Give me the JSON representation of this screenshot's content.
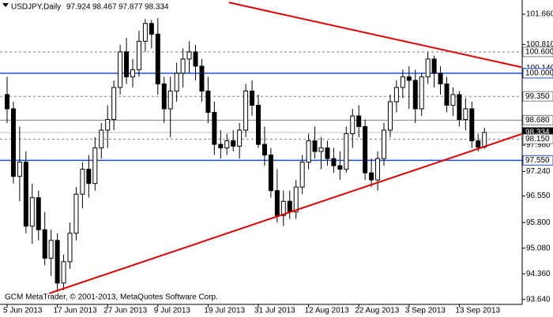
{
  "chart_data": {
    "type": "candlestick",
    "symbol": "USDJPY,Daily",
    "ohlc_header": [
      97.924,
      98.467,
      97.877,
      98.334
    ],
    "copyright": "GCM MetaTrader, © 2001-2013, MetaQuotes Software Corp.",
    "categories": [
      "5 Jun 2013",
      null,
      null,
      null,
      null,
      null,
      null,
      null,
      "17 Jun 2013",
      null,
      null,
      null,
      null,
      null,
      null,
      null,
      "27 Jun 2013",
      null,
      null,
      null,
      null,
      null,
      null,
      null,
      "9 Jul 2013",
      null,
      null,
      null,
      null,
      null,
      null,
      null,
      "19 Jul 2013",
      null,
      null,
      null,
      null,
      null,
      null,
      null,
      "31 Jul 2013",
      null,
      null,
      null,
      null,
      null,
      null,
      null,
      "12 Aug 2013",
      null,
      null,
      null,
      null,
      null,
      null,
      null,
      "22 Aug 2013",
      null,
      null,
      null,
      null,
      null,
      null,
      null,
      "3 Sep 2013",
      null,
      null,
      null,
      null,
      null,
      null,
      null,
      "13 Sep 2013",
      null,
      null,
      null,
      null
    ],
    "open": [
      99.4,
      99.0,
      97.1,
      97.5,
      95.7,
      96.5,
      95.6,
      94.8,
      95.3,
      94.1,
      94.7,
      95.5,
      96.6,
      97.3,
      96.9,
      97.9,
      98.4,
      98.7,
      99.6,
      100.6,
      99.9,
      100.1,
      100.9,
      101.4,
      101.1,
      99.7,
      99.0,
      99.5,
      100.0,
      100.4,
      100.6,
      100.2,
      99.5,
      98.9,
      98.0,
      97.9,
      98.1,
      97.95,
      98.4,
      99.5,
      99.1,
      98.0,
      97.7,
      96.7,
      96.0,
      96.4,
      96.1,
      96.8,
      97.5,
      98.1,
      97.8,
      97.9,
      97.6,
      97.4,
      97.3,
      98.3,
      98.8,
      98.5,
      97.2,
      97.0,
      97.6,
      98.4,
      99.2,
      99.6,
      99.9,
      99.8,
      99.0,
      99.9,
      100.4,
      100.0,
      99.7,
      99.1,
      99.4,
      98.7,
      99.0,
      98.1,
      97.924
    ],
    "high": [
      99.9,
      99.2,
      98.5,
      97.8,
      96.9,
      96.7,
      96.1,
      95.6,
      95.5,
      94.9,
      95.8,
      96.8,
      97.5,
      97.7,
      98.2,
      98.6,
      99.1,
      99.8,
      100.8,
      101.0,
      100.4,
      101.2,
      101.53,
      101.5,
      101.55,
      99.9,
      99.9,
      100.3,
      100.7,
      100.9,
      100.8,
      100.4,
      99.9,
      99.2,
      98.4,
      98.3,
      98.4,
      98.6,
      99.7,
      99.8,
      99.4,
      98.5,
      97.9,
      97.3,
      96.7,
      96.7,
      97.0,
      97.7,
      98.3,
      98.5,
      98.2,
      98.1,
      97.9,
      97.8,
      98.5,
      99.0,
      99.1,
      98.7,
      97.6,
      97.8,
      98.6,
      99.4,
      99.8,
      100.1,
      100.2,
      100.1,
      100.0,
      100.6,
      100.5,
      100.2,
      99.9,
      99.6,
      99.5,
      99.3,
      99.2,
      98.3,
      98.467
    ],
    "low": [
      98.6,
      96.9,
      96.4,
      95.5,
      95.2,
      95.3,
      94.6,
      94.3,
      93.85,
      93.9,
      94.5,
      95.3,
      96.2,
      96.5,
      96.7,
      97.6,
      97.9,
      98.4,
      99.4,
      99.7,
      99.6,
      99.9,
      100.6,
      100.7,
      99.4,
      98.6,
      98.2,
      99.2,
      99.6,
      100.0,
      99.8,
      99.2,
      98.6,
      97.7,
      97.6,
      97.7,
      97.8,
      97.6,
      98.2,
      98.8,
      97.9,
      97.4,
      96.5,
      95.8,
      95.7,
      95.9,
      95.9,
      96.6,
      97.3,
      97.6,
      97.3,
      97.4,
      97.2,
      97.0,
      97.2,
      97.9,
      98.2,
      97.0,
      96.8,
      96.7,
      97.4,
      98.2,
      98.9,
      99.3,
      99.0,
      98.6,
      98.8,
      99.7,
      99.6,
      99.4,
      98.9,
      98.8,
      98.5,
      98.4,
      97.9,
      97.8,
      97.877
    ],
    "close": [
      99.0,
      97.1,
      97.5,
      95.7,
      96.5,
      95.6,
      94.8,
      95.3,
      94.1,
      94.7,
      95.5,
      96.6,
      97.3,
      96.9,
      97.9,
      98.4,
      98.7,
      99.6,
      100.6,
      99.9,
      100.1,
      100.9,
      101.4,
      101.1,
      99.7,
      99.0,
      99.5,
      100.0,
      100.4,
      100.6,
      100.2,
      99.5,
      98.9,
      98.0,
      97.9,
      98.1,
      97.95,
      98.4,
      99.5,
      99.1,
      98.0,
      97.7,
      96.7,
      96.0,
      96.4,
      96.1,
      96.8,
      97.5,
      98.1,
      97.8,
      97.9,
      97.6,
      97.4,
      97.3,
      98.3,
      98.8,
      98.5,
      97.2,
      97.0,
      97.6,
      98.4,
      99.2,
      99.6,
      99.9,
      99.8,
      99.0,
      99.9,
      100.4,
      100.0,
      99.7,
      99.1,
      99.4,
      98.7,
      99.0,
      98.1,
      97.92,
      98.334
    ],
    "bull_color": "#ffffff",
    "bear_color": "#000000",
    "ylim": [
      93.5,
      102.06
    ],
    "yticks": [
      {
        "value": 101.66,
        "label": "101.660"
      },
      {
        "value": 100.81,
        "label": "100.810"
      },
      {
        "value": 100.14,
        "label": "100.140"
      },
      {
        "value": 97.98,
        "label": "97.980"
      },
      {
        "value": 97.24,
        "label": "97.240"
      },
      {
        "value": 96.55,
        "label": "96.550"
      },
      {
        "value": 95.8,
        "label": "95.800"
      },
      {
        "value": 95.08,
        "label": "95.080"
      },
      {
        "value": 94.36,
        "label": "94.360"
      },
      {
        "value": 93.64,
        "label": "93.640"
      }
    ],
    "levels": [
      {
        "value": 100.6,
        "label": "100.600",
        "style": "dashed",
        "color": "#808080"
      },
      {
        "value": 100.0,
        "label": "100.000",
        "style": "solid",
        "color": "#1f4fd8"
      },
      {
        "value": 99.35,
        "label": "99.350",
        "style": "dashed",
        "color": "#808080"
      },
      {
        "value": 98.68,
        "label": "98.680",
        "style": "solid",
        "color": "#808080"
      },
      {
        "value": 98.334,
        "label": "98.334",
        "style": "current",
        "color": "#000000"
      },
      {
        "value": 98.15,
        "label": "98.150",
        "style": "dashed",
        "color": "#808080"
      },
      {
        "value": 97.55,
        "label": "97.550",
        "style": "solid",
        "color": "#1f4fd8"
      }
    ],
    "trendlines": [
      {
        "color": "#e00000",
        "x": [
          35.3,
          81.9
        ],
        "y": [
          101.99,
          100.17
        ]
      },
      {
        "color": "#e00000",
        "x": [
          6.7,
          81.9
        ],
        "y": [
          93.81,
          98.29
        ]
      }
    ]
  }
}
